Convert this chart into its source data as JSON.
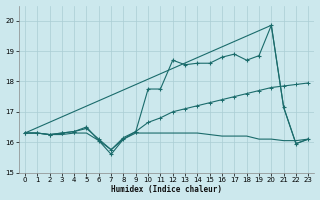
{
  "xlabel": "Humidex (Indice chaleur)",
  "background_color": "#cce8ed",
  "grid_color": "#aacdd4",
  "line_color": "#1a6b6b",
  "xlim": [
    -0.5,
    23.5
  ],
  "ylim": [
    15,
    20.5
  ],
  "yticks": [
    15,
    16,
    17,
    18,
    19,
    20
  ],
  "xticks": [
    0,
    1,
    2,
    3,
    4,
    5,
    6,
    7,
    8,
    9,
    10,
    11,
    12,
    13,
    14,
    15,
    16,
    17,
    18,
    19,
    20,
    21,
    22,
    23
  ],
  "line_flat": {
    "x": [
      0,
      1,
      2,
      3,
      4,
      5,
      6,
      7,
      8,
      9,
      10,
      11,
      12,
      13,
      14,
      15,
      16,
      17,
      18,
      19,
      20,
      21,
      22,
      23
    ],
    "y": [
      16.3,
      16.3,
      16.25,
      16.25,
      16.3,
      16.3,
      16.05,
      15.75,
      16.1,
      16.3,
      16.3,
      16.3,
      16.3,
      16.3,
      16.3,
      16.25,
      16.2,
      16.2,
      16.2,
      16.1,
      16.1,
      16.05,
      16.05,
      16.1
    ]
  },
  "line_rise": {
    "x": [
      0,
      1,
      2,
      3,
      4,
      5,
      6,
      7,
      8,
      9,
      10,
      11,
      12,
      13,
      14,
      15,
      16,
      17,
      18,
      19,
      20,
      21,
      22,
      23
    ],
    "y": [
      16.3,
      16.3,
      16.25,
      16.3,
      16.35,
      16.45,
      16.1,
      15.75,
      16.15,
      16.35,
      16.65,
      16.8,
      17.0,
      17.1,
      17.2,
      17.3,
      17.4,
      17.5,
      17.6,
      17.7,
      17.8,
      17.85,
      17.9,
      17.95
    ]
  },
  "line_jagged": {
    "x": [
      0,
      1,
      2,
      3,
      4,
      5,
      6,
      7,
      8,
      9,
      10,
      11,
      12,
      13,
      14,
      15,
      16,
      17,
      18,
      19,
      20,
      21,
      22,
      23
    ],
    "y": [
      16.3,
      16.3,
      16.25,
      16.3,
      16.35,
      16.5,
      16.05,
      15.6,
      16.1,
      16.35,
      17.75,
      17.75,
      18.7,
      18.55,
      18.6,
      18.6,
      18.8,
      18.9,
      18.7,
      18.85,
      19.85,
      17.15,
      15.95,
      16.1
    ]
  },
  "line_diag": {
    "x": [
      0,
      20,
      21,
      22,
      23
    ],
    "y": [
      16.3,
      19.85,
      17.15,
      15.95,
      16.1
    ]
  }
}
